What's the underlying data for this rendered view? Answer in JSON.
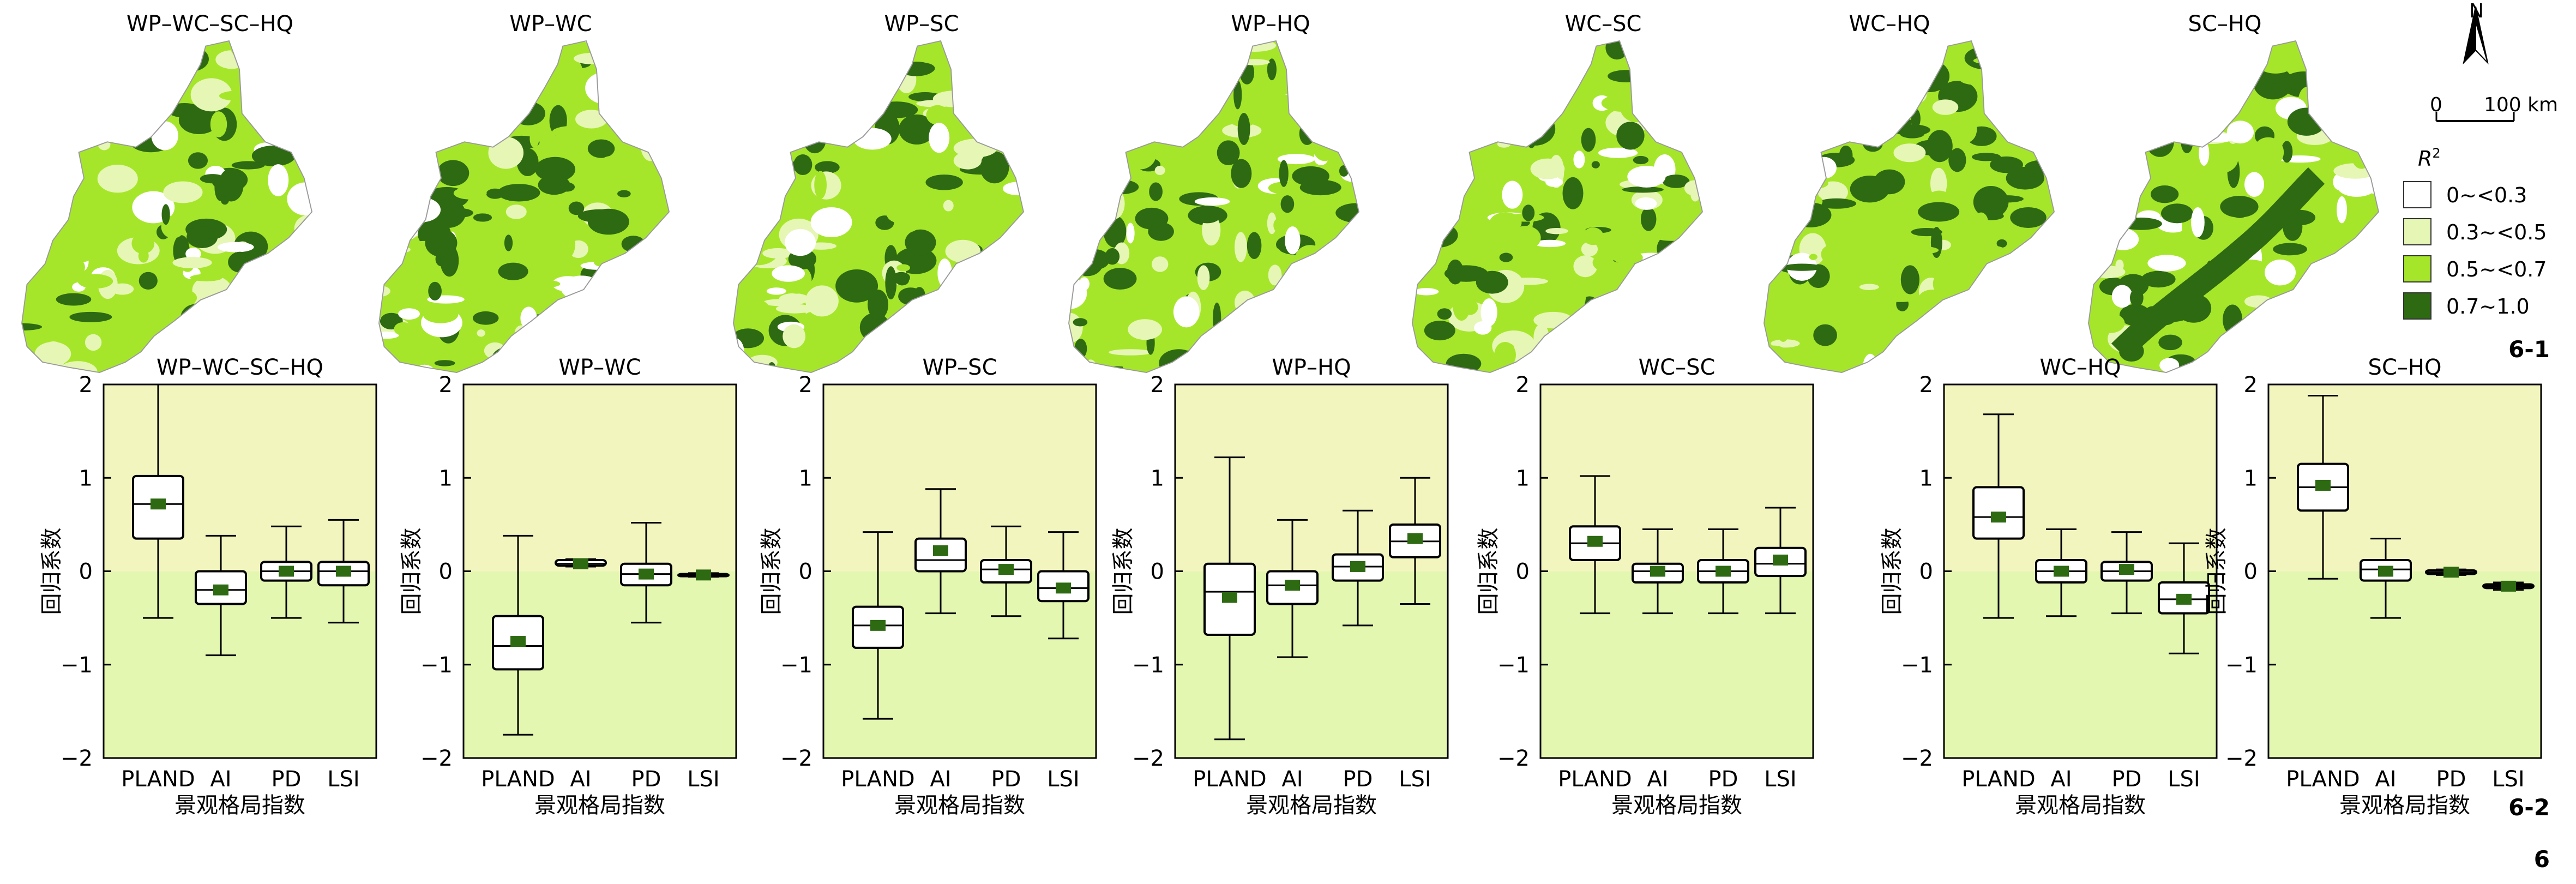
{
  "colors": {
    "r2_0": "#ffffff",
    "r2_1": "#e6f6b4",
    "r2_2": "#a6e62a",
    "r2_3": "#2d6a12",
    "upper_bg": "#f3f5bf",
    "lower_bg": "#e3f7b0",
    "mean_marker": "#2d6a12",
    "stroke": "#000000"
  },
  "maps": {
    "titles": [
      "WP–WC–SC–HQ",
      "WP–WC",
      "WP–SC",
      "WP–HQ",
      "WC–SC",
      "WC–HQ",
      "SC–HQ"
    ],
    "north_label": "N",
    "scale_zero": "0",
    "scale_end": "100 km",
    "legend_title": "R",
    "legend_title_sup": "2",
    "legend_items": [
      "0~<0.3",
      "0.3~<0.5",
      "0.5~<0.7",
      "0.7~1.0"
    ],
    "legend_icons": [
      "swatch-icon",
      "swatch-icon",
      "swatch-icon",
      "swatch-icon"
    ]
  },
  "panel_labels": {
    "maps": "6-1",
    "boxplots": "6-2",
    "figure": "6"
  },
  "chart_data": [
    {
      "type": "box",
      "title": "WP–WC–SC–HQ",
      "xlabel": "景观格局指数",
      "ylabel": "回归系数",
      "ylim": [
        -2,
        2
      ],
      "yticks": [
        "2",
        "1",
        "0",
        "−1",
        "−2"
      ],
      "categories": [
        "PLAND",
        "AI",
        "PD",
        "LSI"
      ],
      "boxes": [
        {
          "min": -0.5,
          "q1": 0.35,
          "median": 0.72,
          "q3": 1.02,
          "max": 2.0,
          "mean": 0.72
        },
        {
          "min": -0.9,
          "q1": -0.35,
          "median": -0.2,
          "q3": 0.0,
          "max": 0.38,
          "mean": -0.2
        },
        {
          "min": -0.5,
          "q1": -0.1,
          "median": 0.0,
          "q3": 0.1,
          "max": 0.48,
          "mean": 0.0
        },
        {
          "min": -0.55,
          "q1": -0.15,
          "median": 0.0,
          "q3": 0.1,
          "max": 0.55,
          "mean": 0.0
        }
      ]
    },
    {
      "type": "box",
      "title": "WP–WC",
      "xlabel": "景观格局指数",
      "ylabel": "回归系数",
      "ylim": [
        -2,
        2
      ],
      "yticks": [
        "2",
        "1",
        "0",
        "−1",
        "−2"
      ],
      "categories": [
        "PLAND",
        "AI",
        "PD",
        "LSI"
      ],
      "boxes": [
        {
          "min": -1.75,
          "q1": -1.05,
          "median": -0.8,
          "q3": -0.48,
          "max": 0.38,
          "mean": -0.75
        },
        {
          "min": 0.05,
          "q1": 0.06,
          "median": 0.08,
          "q3": 0.12,
          "max": 0.13,
          "mean": 0.08
        },
        {
          "min": -0.55,
          "q1": -0.15,
          "median": -0.03,
          "q3": 0.08,
          "max": 0.52,
          "mean": -0.03
        },
        {
          "min": -0.06,
          "q1": -0.05,
          "median": -0.04,
          "q3": -0.03,
          "max": -0.02,
          "mean": -0.04
        }
      ]
    },
    {
      "type": "box",
      "title": "WP–SC",
      "xlabel": "景观格局指数",
      "ylabel": "回归系数",
      "ylim": [
        -2,
        2
      ],
      "yticks": [
        "2",
        "1",
        "0",
        "−1",
        "−2"
      ],
      "categories": [
        "PLAND",
        "AI",
        "PD",
        "LSI"
      ],
      "boxes": [
        {
          "min": -1.58,
          "q1": -0.82,
          "median": -0.58,
          "q3": -0.38,
          "max": 0.42,
          "mean": -0.58
        },
        {
          "min": -0.45,
          "q1": 0.0,
          "median": 0.12,
          "q3": 0.35,
          "max": 0.88,
          "mean": 0.22
        },
        {
          "min": -0.48,
          "q1": -0.12,
          "median": 0.02,
          "q3": 0.12,
          "max": 0.48,
          "mean": 0.02
        },
        {
          "min": -0.72,
          "q1": -0.32,
          "median": -0.18,
          "q3": 0.0,
          "max": 0.42,
          "mean": -0.18
        }
      ]
    },
    {
      "type": "box",
      "title": "WP–HQ",
      "xlabel": "景观格局指数",
      "ylabel": "回归系数",
      "ylim": [
        -2,
        2
      ],
      "yticks": [
        "2",
        "1",
        "0",
        "−1",
        "−2"
      ],
      "categories": [
        "PLAND",
        "AI",
        "PD",
        "LSI"
      ],
      "boxes": [
        {
          "min": -1.8,
          "q1": -0.68,
          "median": -0.22,
          "q3": 0.08,
          "max": 1.22,
          "mean": -0.28
        },
        {
          "min": -0.92,
          "q1": -0.35,
          "median": -0.15,
          "q3": 0.0,
          "max": 0.55,
          "mean": -0.15
        },
        {
          "min": -0.58,
          "q1": -0.1,
          "median": 0.05,
          "q3": 0.18,
          "max": 0.65,
          "mean": 0.05
        },
        {
          "min": -0.35,
          "q1": 0.15,
          "median": 0.32,
          "q3": 0.5,
          "max": 1.0,
          "mean": 0.35
        }
      ]
    },
    {
      "type": "box",
      "title": "WC–SC",
      "xlabel": "景观格局指数",
      "ylabel": "回归系数",
      "ylim": [
        -2,
        2
      ],
      "yticks": [
        "2",
        "1",
        "0",
        "−1",
        "−2"
      ],
      "categories": [
        "PLAND",
        "AI",
        "PD",
        "LSI"
      ],
      "boxes": [
        {
          "min": -0.45,
          "q1": 0.12,
          "median": 0.3,
          "q3": 0.48,
          "max": 1.02,
          "mean": 0.32
        },
        {
          "min": -0.45,
          "q1": -0.12,
          "median": 0.0,
          "q3": 0.08,
          "max": 0.45,
          "mean": 0.0
        },
        {
          "min": -0.45,
          "q1": -0.12,
          "median": 0.0,
          "q3": 0.12,
          "max": 0.45,
          "mean": 0.0
        },
        {
          "min": -0.45,
          "q1": -0.05,
          "median": 0.08,
          "q3": 0.25,
          "max": 0.68,
          "mean": 0.12
        }
      ]
    },
    {
      "type": "box",
      "title": "WC–HQ",
      "xlabel": "景观格局指数",
      "ylabel": "回归系数",
      "ylim": [
        -2,
        2
      ],
      "yticks": [
        "2",
        "1",
        "0",
        "−1",
        "−2"
      ],
      "categories": [
        "PLAND",
        "AI",
        "PD",
        "LSI"
      ],
      "boxes": [
        {
          "min": -0.5,
          "q1": 0.35,
          "median": 0.58,
          "q3": 0.9,
          "max": 1.68,
          "mean": 0.58
        },
        {
          "min": -0.48,
          "q1": -0.12,
          "median": 0.0,
          "q3": 0.12,
          "max": 0.45,
          "mean": 0.0
        },
        {
          "min": -0.45,
          "q1": -0.1,
          "median": 0.0,
          "q3": 0.1,
          "max": 0.42,
          "mean": 0.02
        },
        {
          "min": -0.88,
          "q1": -0.45,
          "median": -0.3,
          "q3": -0.12,
          "max": 0.3,
          "mean": -0.3
        }
      ]
    },
    {
      "type": "box",
      "title": "SC–HQ",
      "xlabel": "景观格局指数",
      "ylabel": "回归系数",
      "ylim": [
        -2,
        2
      ],
      "yticks": [
        "2",
        "1",
        "0",
        "−1",
        "−2"
      ],
      "categories": [
        "PLAND",
        "AI",
        "PD",
        "LSI"
      ],
      "boxes": [
        {
          "min": -0.08,
          "q1": 0.65,
          "median": 0.9,
          "q3": 1.15,
          "max": 1.88,
          "mean": 0.92
        },
        {
          "min": -0.5,
          "q1": -0.1,
          "median": 0.02,
          "q3": 0.12,
          "max": 0.35,
          "mean": 0.0
        },
        {
          "min": -0.04,
          "q1": -0.03,
          "median": -0.01,
          "q3": 0.01,
          "max": 0.02,
          "mean": -0.01
        },
        {
          "min": -0.2,
          "q1": -0.18,
          "median": -0.16,
          "q3": -0.14,
          "max": -0.12,
          "mean": -0.16
        }
      ]
    }
  ]
}
